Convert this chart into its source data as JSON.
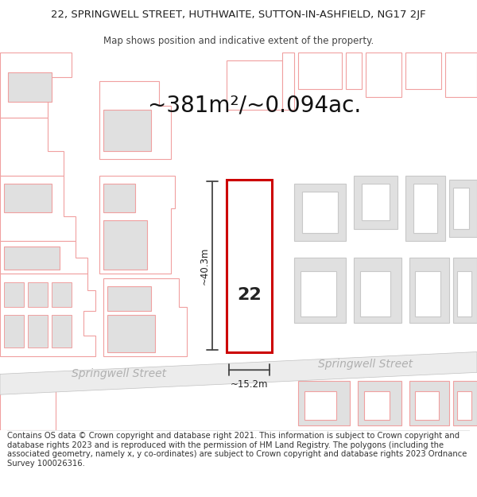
{
  "title_line1": "22, SPRINGWELL STREET, HUTHWAITE, SUTTON-IN-ASHFIELD, NG17 2JF",
  "title_line2": "Map shows position and indicative extent of the property.",
  "area_text": "~381m²/~0.094ac.",
  "property_number": "22",
  "width_label": "~15.2m",
  "height_label": "~40.3m",
  "street_label": "Springwell Street",
  "footer_text": "Contains OS data © Crown copyright and database right 2021. This information is subject to Crown copyright and database rights 2023 and is reproduced with the permission of HM Land Registry. The polygons (including the associated geometry, namely x, y co-ordinates) are subject to Crown copyright and database rights 2023 Ordnance Survey 100026316.",
  "bg_color": "#ffffff",
  "map_bg": "#ffffff",
  "building_fill_gray": "#e0e0e0",
  "building_fill_white": "#ffffff",
  "building_stroke_pink": "#f0a0a0",
  "building_stroke_gray": "#c8c8c8",
  "property_stroke": "#cc0000",
  "property_fill": "#ffffff",
  "dim_line_color": "#444444",
  "street_fill": "#e8e8e8",
  "street_text_color": "#b0b0b0",
  "title_fontsize": 9.5,
  "subtitle_fontsize": 8.5,
  "area_fontsize": 20,
  "number_fontsize": 16,
  "dim_fontsize": 8.5,
  "street_fontsize": 10,
  "footer_fontsize": 7.2
}
